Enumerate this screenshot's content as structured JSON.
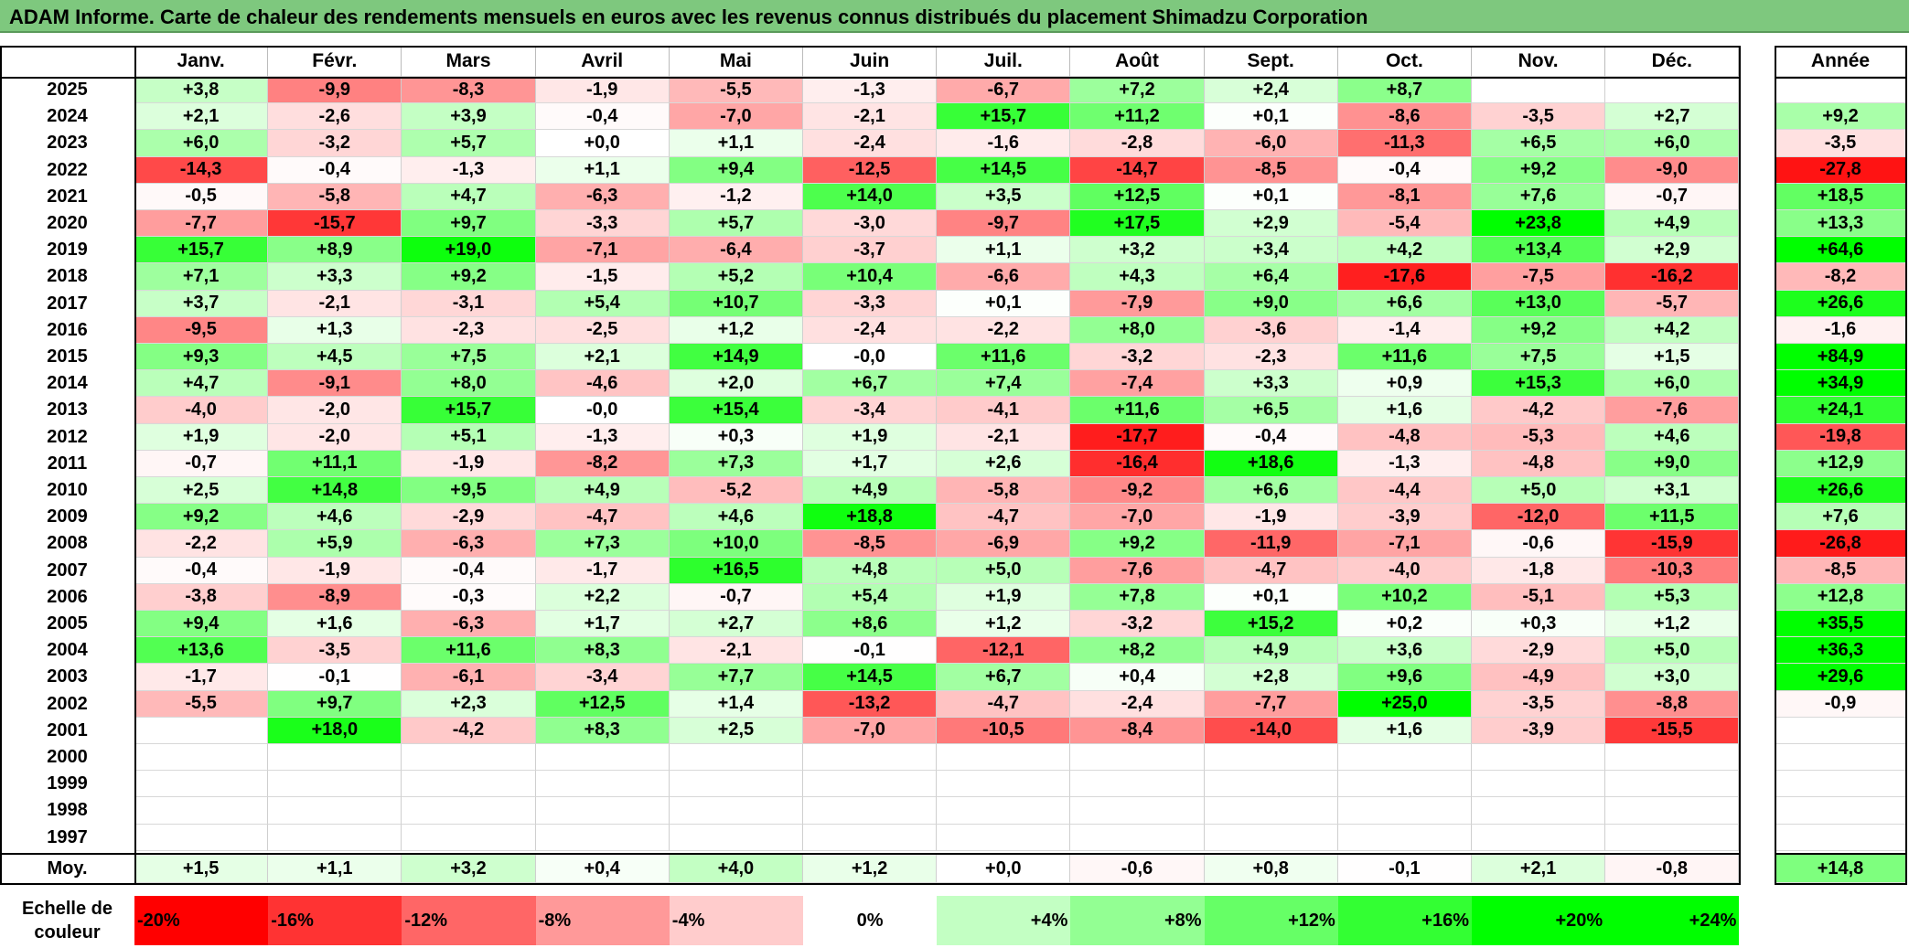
{
  "title": "ADAM Informe. Carte de chaleur des rendements mensuels en euros avec les revenus connus distribués du placement Shimadzu Corporation",
  "chart_data": {
    "type": "heatmap",
    "months": [
      "Janv.",
      "Févr.",
      "Mars",
      "Avril",
      "Mai",
      "Juin",
      "Juil.",
      "Août",
      "Sept.",
      "Oct.",
      "Nov.",
      "Déc."
    ],
    "year_header": "Année",
    "rows": [
      {
        "year": "2025",
        "values": [
          "+3,8",
          "-9,9",
          "-8,3",
          "-1,9",
          "-5,5",
          "-1,3",
          "-6,7",
          "+7,2",
          "+2,4",
          "+8,7",
          "",
          ""
        ],
        "annual": ""
      },
      {
        "year": "2024",
        "values": [
          "+2,1",
          "-2,6",
          "+3,9",
          "-0,4",
          "-7,0",
          "-2,1",
          "+15,7",
          "+11,2",
          "+0,1",
          "-8,6",
          "-3,5",
          "+2,7"
        ],
        "annual": "+9,2"
      },
      {
        "year": "2023",
        "values": [
          "+6,0",
          "-3,2",
          "+5,7",
          "+0,0",
          "+1,1",
          "-2,4",
          "-1,6",
          "-2,8",
          "-6,0",
          "-11,3",
          "+6,5",
          "+6,0"
        ],
        "annual": "-3,5"
      },
      {
        "year": "2022",
        "values": [
          "-14,3",
          "-0,4",
          "-1,3",
          "+1,1",
          "+9,4",
          "-12,5",
          "+14,5",
          "-14,7",
          "-8,5",
          "-0,4",
          "+9,2",
          "-9,0"
        ],
        "annual": "-27,8"
      },
      {
        "year": "2021",
        "values": [
          "-0,5",
          "-5,8",
          "+4,7",
          "-6,3",
          "-1,2",
          "+14,0",
          "+3,5",
          "+12,5",
          "+0,1",
          "-8,1",
          "+7,6",
          "-0,7"
        ],
        "annual": "+18,5"
      },
      {
        "year": "2020",
        "values": [
          "-7,7",
          "-15,7",
          "+9,7",
          "-3,3",
          "+5,7",
          "-3,0",
          "-9,7",
          "+17,5",
          "+2,9",
          "-5,4",
          "+23,8",
          "+4,9"
        ],
        "annual": "+13,3"
      },
      {
        "year": "2019",
        "values": [
          "+15,7",
          "+8,9",
          "+19,0",
          "-7,1",
          "-6,4",
          "-3,7",
          "+1,1",
          "+3,2",
          "+3,4",
          "+4,2",
          "+13,4",
          "+2,9"
        ],
        "annual": "+64,6"
      },
      {
        "year": "2018",
        "values": [
          "+7,1",
          "+3,3",
          "+9,2",
          "-1,5",
          "+5,2",
          "+10,4",
          "-6,6",
          "+4,3",
          "+6,4",
          "-17,6",
          "-7,5",
          "-16,2"
        ],
        "annual": "-8,2"
      },
      {
        "year": "2017",
        "values": [
          "+3,7",
          "-2,1",
          "-3,1",
          "+5,4",
          "+10,7",
          "-3,3",
          "+0,1",
          "-7,9",
          "+9,0",
          "+6,6",
          "+13,0",
          "-5,7"
        ],
        "annual": "+26,6"
      },
      {
        "year": "2016",
        "values": [
          "-9,5",
          "+1,3",
          "-2,3",
          "-2,5",
          "+1,2",
          "-2,4",
          "-2,2",
          "+8,0",
          "-3,6",
          "-1,4",
          "+9,2",
          "+4,2"
        ],
        "annual": "-1,6"
      },
      {
        "year": "2015",
        "values": [
          "+9,3",
          "+4,5",
          "+7,5",
          "+2,1",
          "+14,9",
          "-0,0",
          "+11,6",
          "-3,2",
          "-2,3",
          "+11,6",
          "+7,5",
          "+1,5"
        ],
        "annual": "+84,9"
      },
      {
        "year": "2014",
        "values": [
          "+4,7",
          "-9,1",
          "+8,0",
          "-4,6",
          "+2,0",
          "+6,7",
          "+7,4",
          "-7,4",
          "+3,3",
          "+0,9",
          "+15,3",
          "+6,0"
        ],
        "annual": "+34,9"
      },
      {
        "year": "2013",
        "values": [
          "-4,0",
          "-2,0",
          "+15,7",
          "-0,0",
          "+15,4",
          "-3,4",
          "-4,1",
          "+11,6",
          "+6,5",
          "+1,6",
          "-4,2",
          "-7,6"
        ],
        "annual": "+24,1"
      },
      {
        "year": "2012",
        "values": [
          "+1,9",
          "-2,0",
          "+5,1",
          "-1,3",
          "+0,3",
          "+1,9",
          "-2,1",
          "-17,7",
          "-0,4",
          "-4,8",
          "-5,3",
          "+4,6"
        ],
        "annual": "-19,8"
      },
      {
        "year": "2011",
        "values": [
          "-0,7",
          "+11,1",
          "-1,9",
          "-8,2",
          "+7,3",
          "+1,7",
          "+2,6",
          "-16,4",
          "+18,6",
          "-1,3",
          "-4,8",
          "+9,0"
        ],
        "annual": "+12,9"
      },
      {
        "year": "2010",
        "values": [
          "+2,5",
          "+14,8",
          "+9,5",
          "+4,9",
          "-5,2",
          "+4,9",
          "-5,8",
          "-9,2",
          "+6,6",
          "-4,4",
          "+5,0",
          "+3,1"
        ],
        "annual": "+26,6"
      },
      {
        "year": "2009",
        "values": [
          "+9,2",
          "+4,6",
          "-2,9",
          "-4,7",
          "+4,6",
          "+18,8",
          "-4,7",
          "-7,0",
          "-1,9",
          "-3,9",
          "-12,0",
          "+11,5"
        ],
        "annual": "+7,6"
      },
      {
        "year": "2008",
        "values": [
          "-2,2",
          "+5,9",
          "-6,3",
          "+7,3",
          "+10,0",
          "-8,5",
          "-6,9",
          "+9,2",
          "-11,9",
          "-7,1",
          "-0,6",
          "-15,9"
        ],
        "annual": "-26,8"
      },
      {
        "year": "2007",
        "values": [
          "-0,4",
          "-1,9",
          "-0,4",
          "-1,7",
          "+16,5",
          "+4,8",
          "+5,0",
          "-7,6",
          "-4,7",
          "-4,0",
          "-1,8",
          "-10,3"
        ],
        "annual": "-8,5"
      },
      {
        "year": "2006",
        "values": [
          "-3,8",
          "-8,9",
          "-0,3",
          "+2,2",
          "-0,7",
          "+5,4",
          "+1,9",
          "+7,8",
          "+0,1",
          "+10,2",
          "-5,1",
          "+5,3"
        ],
        "annual": "+12,8"
      },
      {
        "year": "2005",
        "values": [
          "+9,4",
          "+1,6",
          "-6,3",
          "+1,7",
          "+2,7",
          "+8,6",
          "+1,2",
          "-3,2",
          "+15,2",
          "+0,2",
          "+0,3",
          "+1,2"
        ],
        "annual": "+35,5"
      },
      {
        "year": "2004",
        "values": [
          "+13,6",
          "-3,5",
          "+11,6",
          "+8,3",
          "-2,1",
          "-0,1",
          "-12,1",
          "+8,2",
          "+4,9",
          "+3,6",
          "-2,9",
          "+5,0"
        ],
        "annual": "+36,3"
      },
      {
        "year": "2003",
        "values": [
          "-1,7",
          "-0,1",
          "-6,1",
          "-3,4",
          "+7,7",
          "+14,5",
          "+6,7",
          "+0,4",
          "+2,8",
          "+9,6",
          "-4,9",
          "+3,0"
        ],
        "annual": "+29,6"
      },
      {
        "year": "2002",
        "values": [
          "-5,5",
          "+9,7",
          "+2,3",
          "+12,5",
          "+1,4",
          "-13,2",
          "-4,7",
          "-2,4",
          "-7,7",
          "+25,0",
          "-3,5",
          "-8,8"
        ],
        "annual": "-0,9"
      },
      {
        "year": "2001",
        "values": [
          "",
          "+18,0",
          "-4,2",
          "+8,3",
          "+2,5",
          "-7,0",
          "-10,5",
          "-8,4",
          "-14,0",
          "+1,6",
          "-3,9",
          "-15,5"
        ],
        "annual": ""
      },
      {
        "year": "2000",
        "values": [
          "",
          "",
          "",
          "",
          "",
          "",
          "",
          "",
          "",
          "",
          "",
          ""
        ],
        "annual": ""
      },
      {
        "year": "1999",
        "values": [
          "",
          "",
          "",
          "",
          "",
          "",
          "",
          "",
          "",
          "",
          "",
          ""
        ],
        "annual": ""
      },
      {
        "year": "1998",
        "values": [
          "",
          "",
          "",
          "",
          "",
          "",
          "",
          "",
          "",
          "",
          "",
          ""
        ],
        "annual": ""
      },
      {
        "year": "1997",
        "values": [
          "",
          "",
          "",
          "",
          "",
          "",
          "",
          "",
          "",
          "",
          "",
          ""
        ],
        "annual": ""
      }
    ],
    "average": {
      "label": "Moy.",
      "values": [
        "+1,5",
        "+1,1",
        "+3,2",
        "+0,4",
        "+4,0",
        "+1,2",
        "+0,0",
        "-0,6",
        "+0,8",
        "-0,1",
        "+2,1",
        "-0,8"
      ],
      "annual": "+14,8"
    },
    "color_scale": {
      "label": "Echelle de couleur",
      "stops": [
        "-20%",
        "-16%",
        "-12%",
        "-8%",
        "-4%",
        "0%",
        "+4%",
        "+8%",
        "+12%",
        "+16%",
        "+20%",
        "+24%"
      ],
      "negative_color": "#ff0000",
      "neutral_color": "#ffffff",
      "positive_color": "#00ff00"
    }
  }
}
